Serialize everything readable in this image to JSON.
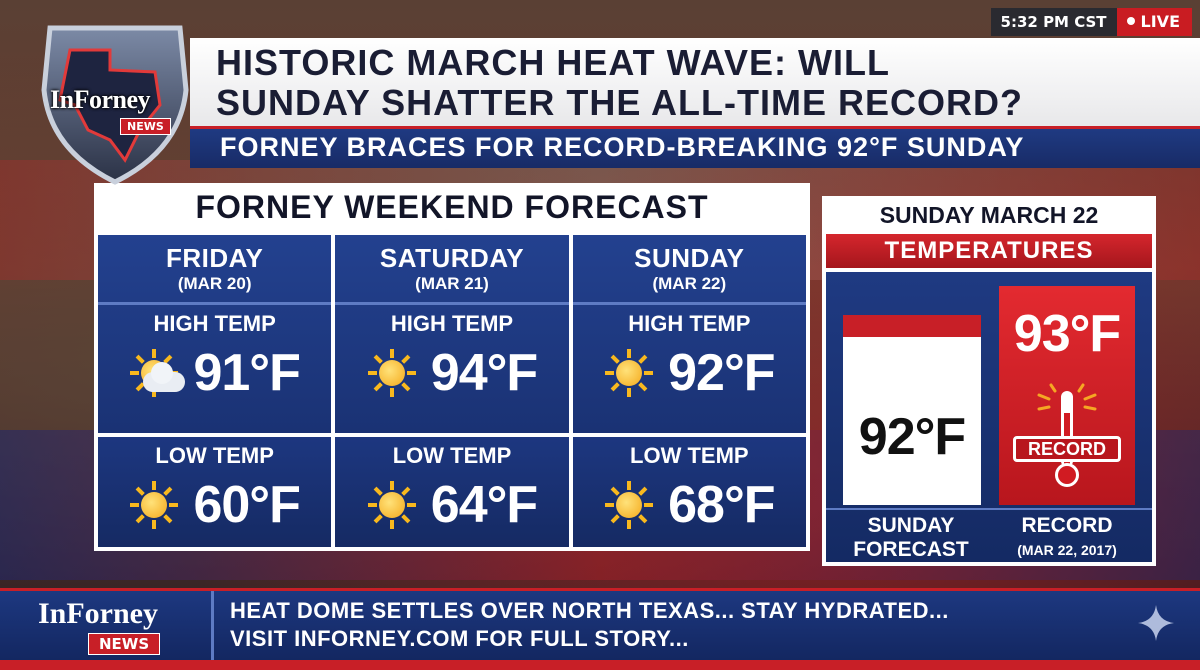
{
  "status": {
    "time": "5:32 PM CST",
    "live_label": "LIVE"
  },
  "logo": {
    "name": "InForney",
    "tag": "NEWS"
  },
  "headline": {
    "line1": "HISTORIC MARCH HEAT WAVE: WILL",
    "line2": "SUNDAY SHATTER THE ALL-TIME RECORD?",
    "subline": "FORNEY BRACES FOR RECORD-BREAKING 92°F SUNDAY"
  },
  "forecast": {
    "title": "FORNEY WEEKEND FORECAST",
    "high_label": "HIGH TEMP",
    "low_label": "LOW TEMP",
    "days": [
      {
        "name": "FRIDAY",
        "date": "(MAR 20)",
        "high": "91°F",
        "low": "60°F",
        "high_icon": "partly-cloudy-icon",
        "low_icon": "sun-icon"
      },
      {
        "name": "SATURDAY",
        "date": "(MAR 21)",
        "high": "94°F",
        "low": "64°F",
        "high_icon": "sun-icon",
        "low_icon": "sun-icon"
      },
      {
        "name": "SUNDAY",
        "date": "(MAR 22)",
        "high": "92°F",
        "low": "68°F",
        "high_icon": "sun-icon",
        "low_icon": "sun-icon"
      }
    ]
  },
  "comparison": {
    "title": "SUNDAY MARCH 22",
    "subtitle": "TEMPERATURES",
    "forecast_value": "92°F",
    "record_value": "93°F",
    "record_tag": "RECORD",
    "forecast_caption_1": "SUNDAY",
    "forecast_caption_2": "FORECAST",
    "record_caption_1": "RECORD",
    "record_caption_2": "(MAR 22, 2017)"
  },
  "ticker": {
    "logo_name": "InForney",
    "logo_tag": "NEWS",
    "line1": "HEAT DOME SETTLES OVER NORTH TEXAS... STAY HYDRATED...",
    "line2": "VISIT INFORNEY.COM FOR FULL STORY..."
  },
  "colors": {
    "accent_red": "#c81f27",
    "panel_blue": "#1f3a82",
    "sun_yellow": "#f4a81a"
  }
}
